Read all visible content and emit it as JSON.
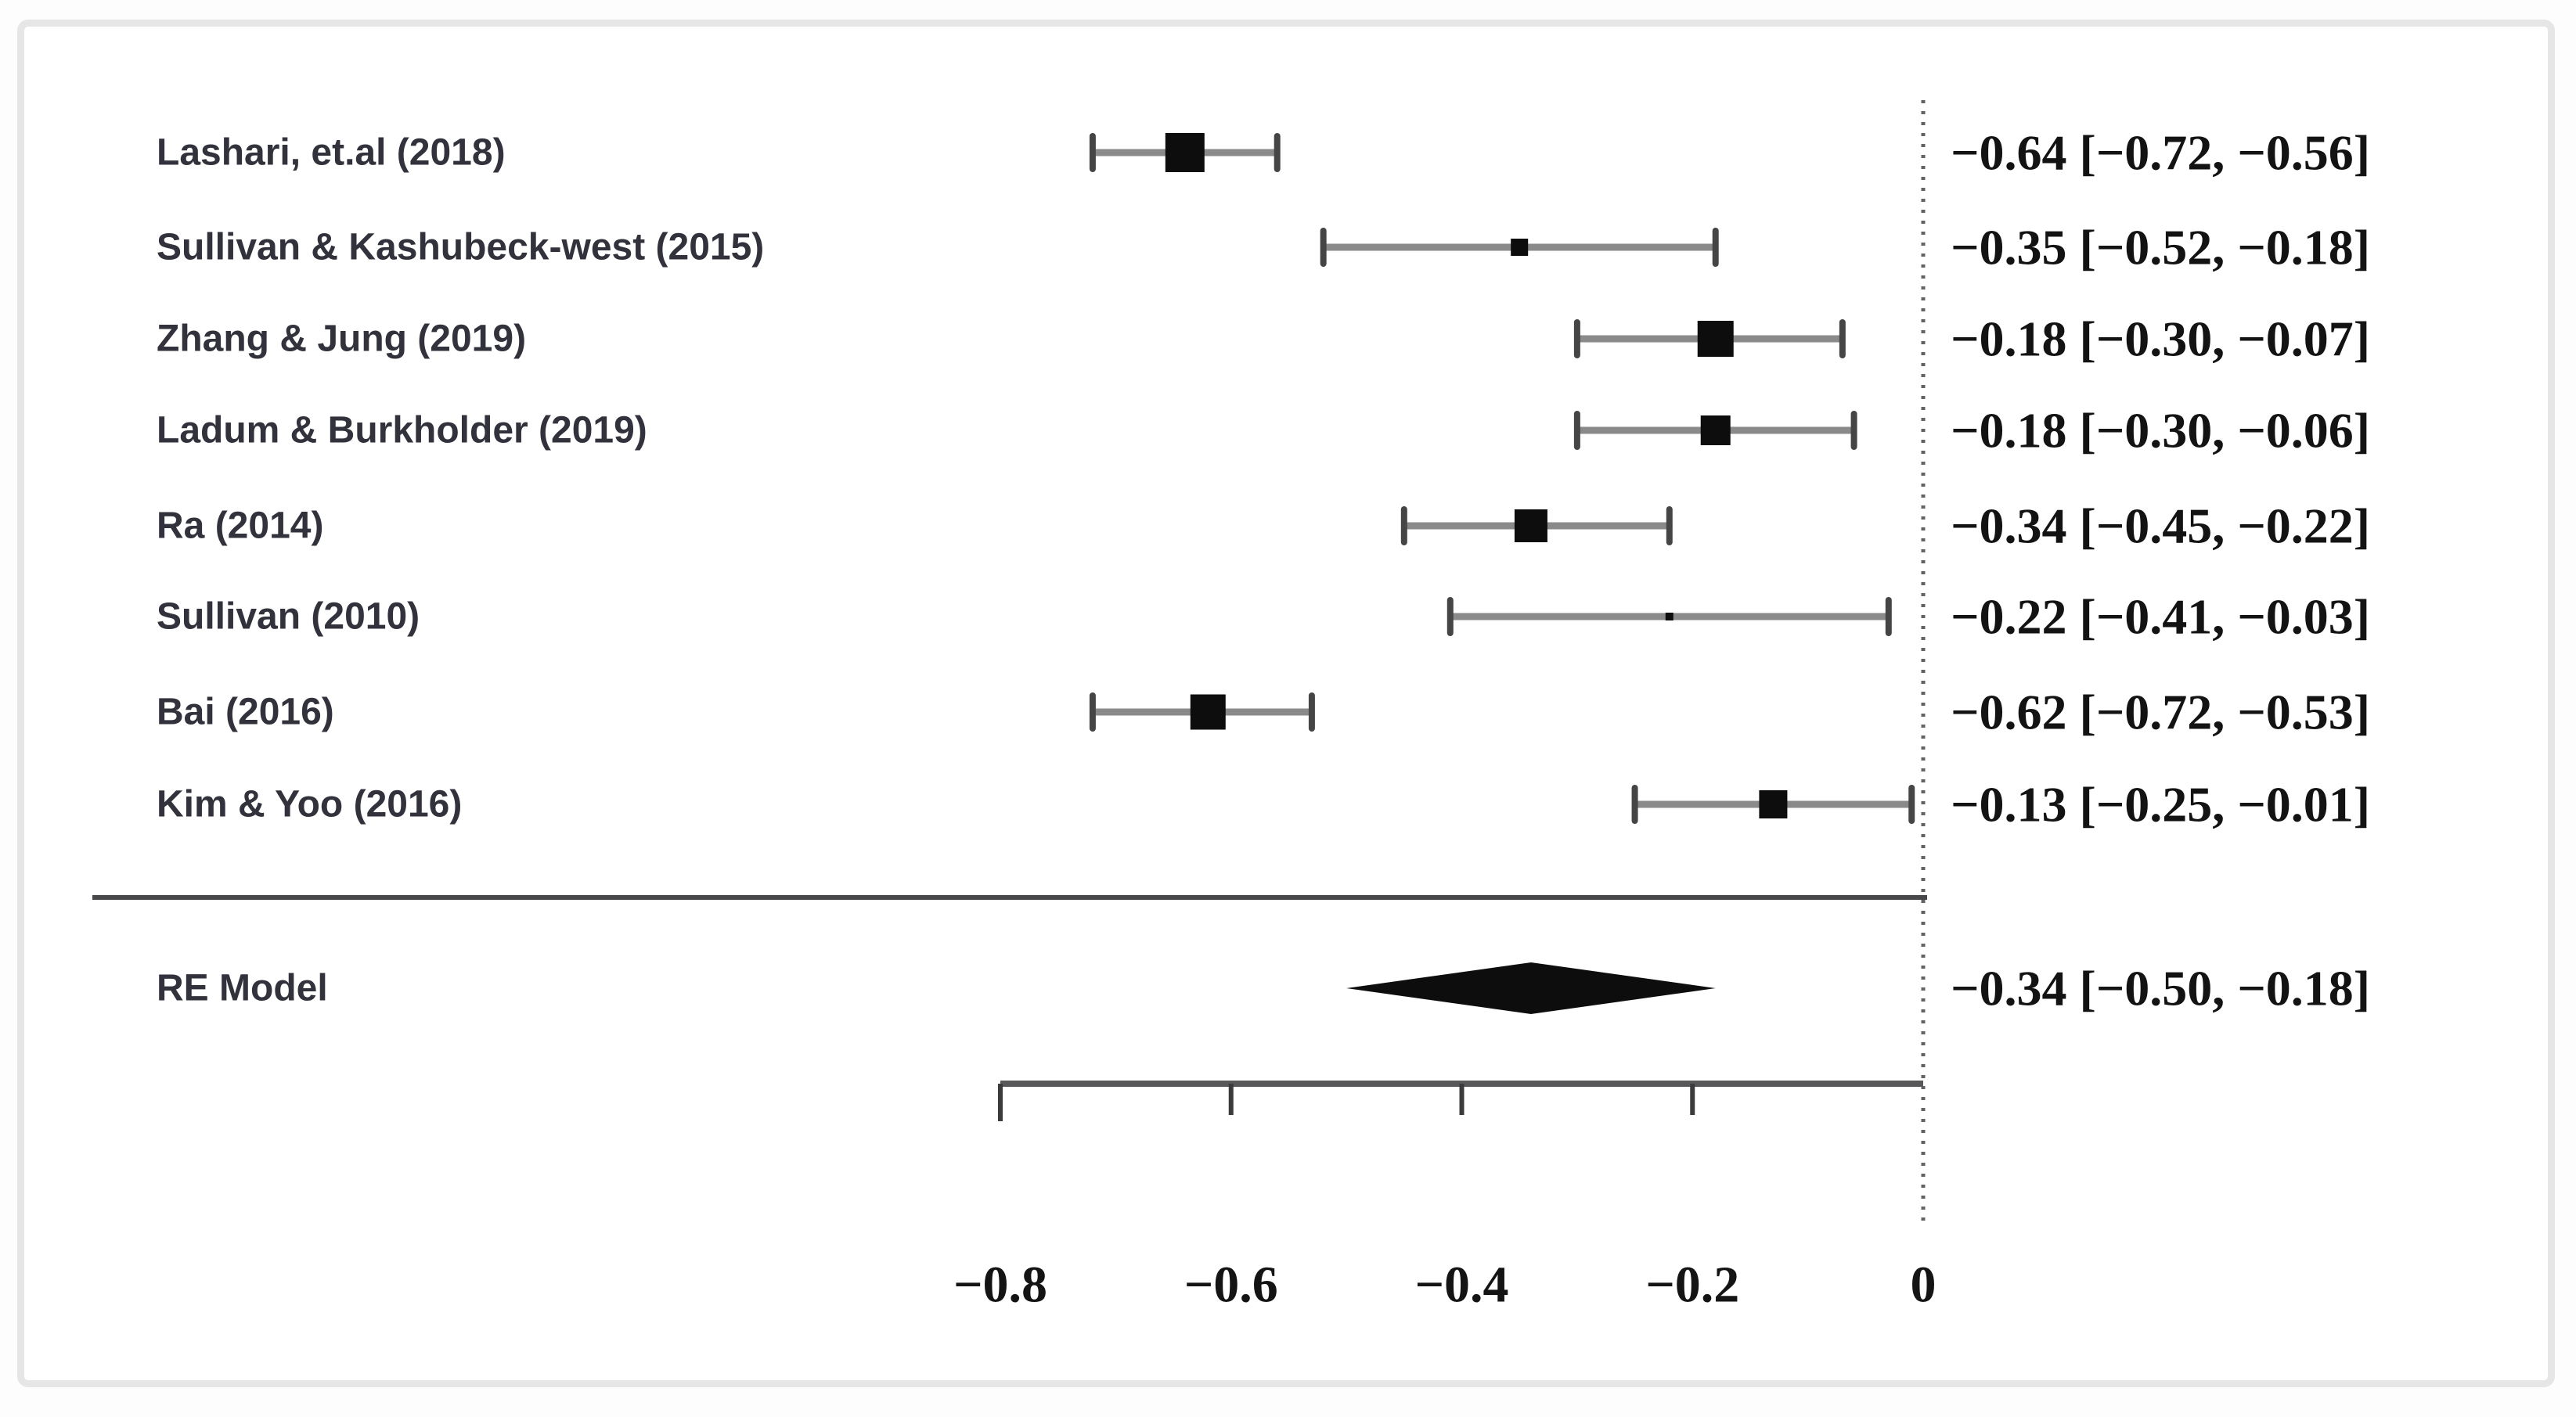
{
  "panel": {
    "background": "#ffffff",
    "border_color": "#e6e6e6"
  },
  "style": {
    "marker_color": "#0d0d0d",
    "ci_line_color": "#8a8a8a",
    "ci_cap_color": "#454545",
    "separator_color": "#48484a",
    "axis_color": "#58585a",
    "zero_line_color": "#626264",
    "study_text_color": "#31323b",
    "value_text_color": "#131313"
  },
  "chart_data": {
    "type": "forest",
    "title": "",
    "xlabel": "",
    "grid": false,
    "legend_position": "none",
    "xlim": [
      -0.8,
      0
    ],
    "zero_reference_line": 0,
    "x_ticks": [
      {
        "value": -0.8,
        "label": "−0.8"
      },
      {
        "value": -0.6,
        "label": "−0.6"
      },
      {
        "value": -0.4,
        "label": "−0.4"
      },
      {
        "value": -0.2,
        "label": "−0.2"
      },
      {
        "value": 0,
        "label": "0"
      }
    ],
    "studies": [
      {
        "label": "Lashari, et.al (2018)",
        "estimate": -0.64,
        "ci_lower": -0.72,
        "ci_upper": -0.56,
        "annotation": "−0.64 [−0.72, −0.56]",
        "weight": 50
      },
      {
        "label": "Sullivan & Kashubeck-west (2015)",
        "estimate": -0.35,
        "ci_lower": -0.52,
        "ci_upper": -0.18,
        "annotation": "−0.35 [−0.52, −0.18]",
        "weight": 22
      },
      {
        "label": "Zhang & Jung (2019)",
        "estimate": -0.18,
        "ci_lower": -0.3,
        "ci_upper": -0.07,
        "annotation": "−0.18 [−0.30, −0.07]",
        "weight": 46
      },
      {
        "label": "Ladum & Burkholder (2019)",
        "estimate": -0.18,
        "ci_lower": -0.3,
        "ci_upper": -0.06,
        "annotation": "−0.18 [−0.30, −0.06]",
        "weight": 38
      },
      {
        "label": "Ra (2014)",
        "estimate": -0.34,
        "ci_lower": -0.45,
        "ci_upper": -0.22,
        "annotation": "−0.34 [−0.45, −0.22]",
        "weight": 42
      },
      {
        "label": "Sullivan (2010)",
        "estimate": -0.22,
        "ci_lower": -0.41,
        "ci_upper": -0.03,
        "annotation": "−0.22 [−0.41, −0.03]",
        "weight": 10
      },
      {
        "label": "Bai (2016)",
        "estimate": -0.62,
        "ci_lower": -0.72,
        "ci_upper": -0.53,
        "annotation": "−0.62 [−0.72, −0.53]",
        "weight": 45
      },
      {
        "label": "Kim & Yoo (2016)",
        "estimate": -0.13,
        "ci_lower": -0.25,
        "ci_upper": -0.01,
        "annotation": "−0.13 [−0.25, −0.01]",
        "weight": 36
      }
    ],
    "summary": {
      "label": "RE Model",
      "estimate": -0.34,
      "ci_lower": -0.5,
      "ci_upper": -0.18,
      "annotation": "−0.34 [−0.50, −0.18]"
    }
  }
}
